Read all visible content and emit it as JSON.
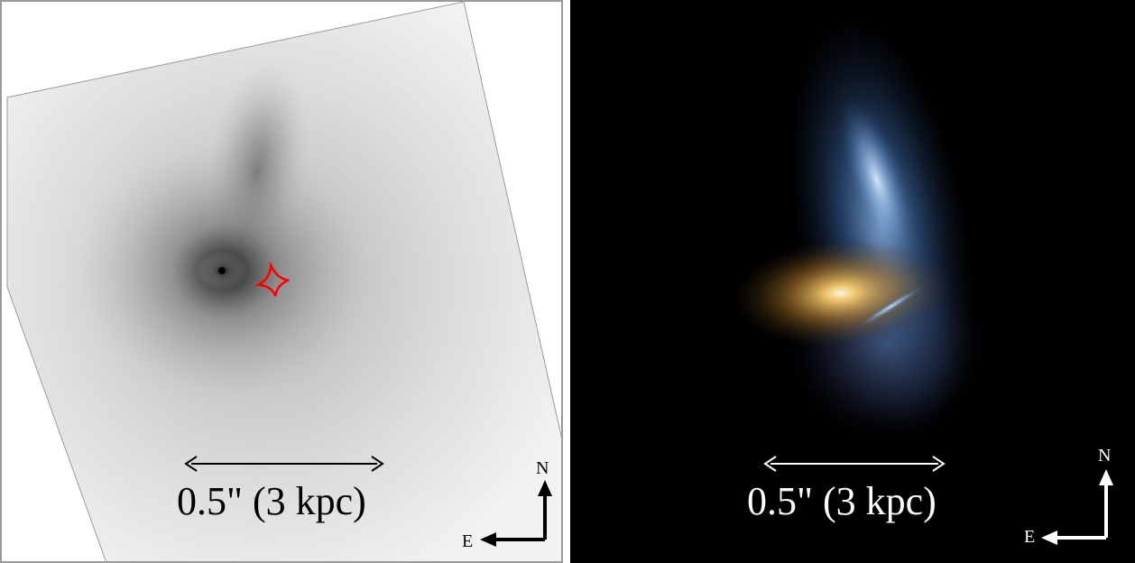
{
  "left_panel": {
    "scale_bar_label": "0.5\" (3 kpc)",
    "compass": {
      "north": "N",
      "east": "E"
    },
    "caustic_color": "#ff0000"
  },
  "right_panel": {
    "scale_bar_label": "0.5\" (3 kpc)",
    "compass": {
      "north": "N",
      "east": "E"
    },
    "lens_galaxy_color": "#f2b04a",
    "arc_color": "#8fb8e8"
  }
}
